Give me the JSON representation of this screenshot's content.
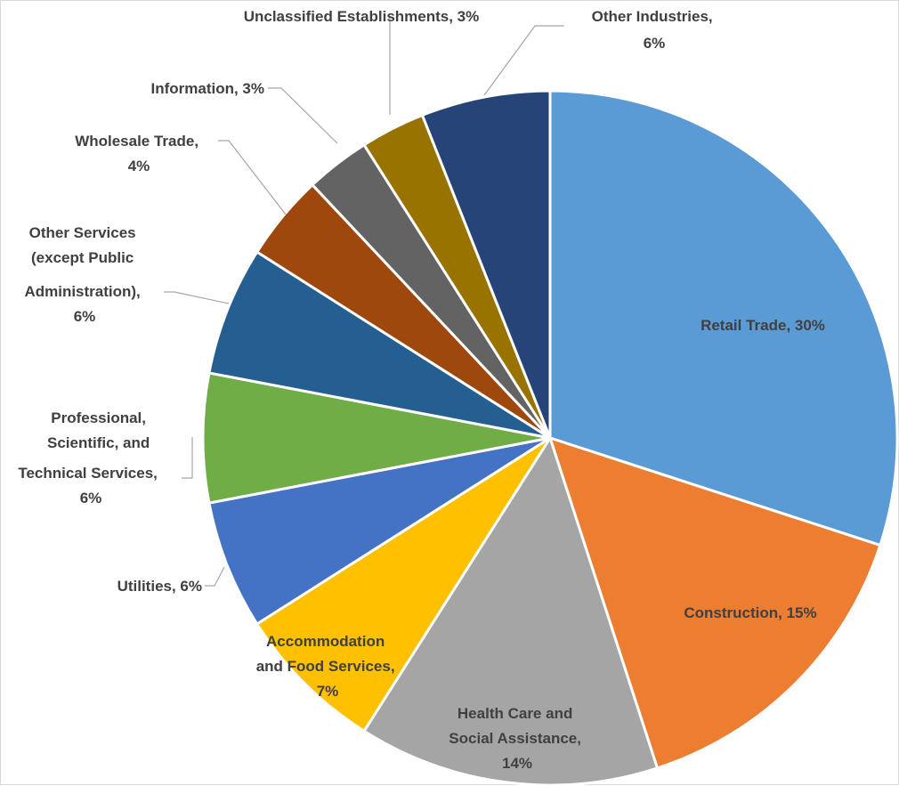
{
  "chart_data": {
    "type": "pie",
    "title": "",
    "slices": [
      {
        "label": "Retail Trade, 30%",
        "category": "Retail Trade",
        "value": 30,
        "color": "#5B9BD5"
      },
      {
        "label": "Construction, 15%",
        "category": "Construction",
        "value": 15,
        "color": "#ED7D31"
      },
      {
        "label": "Health Care and Social Assistance, 14%",
        "category": "Health Care and Social Assistance",
        "value": 14,
        "color": "#A5A5A5"
      },
      {
        "label": "Accommodation and Food Services, 7%",
        "category": "Accommodation and Food Services",
        "value": 7,
        "color": "#FFC000"
      },
      {
        "label": "Utilities, 6%",
        "category": "Utilities",
        "value": 6,
        "color": "#4472C4"
      },
      {
        "label": "Professional, Scientific, and Technical Services, 6%",
        "category": "Professional, Scientific, and Technical Services",
        "value": 6,
        "color": "#70AD47"
      },
      {
        "label": "Other Services (except Public Administration), 6%",
        "category": "Other Services (except Public Administration)",
        "value": 6,
        "color": "#255E91"
      },
      {
        "label": "Wholesale Trade, 4%",
        "category": "Wholesale Trade",
        "value": 4,
        "color": "#9E480E"
      },
      {
        "label": "Information, 3%",
        "category": "Information",
        "value": 3,
        "color": "#636363"
      },
      {
        "label": "Unclassified Establishments, 3%",
        "category": "Unclassified Establishments",
        "value": 3,
        "color": "#997300"
      },
      {
        "label": "Other Industries, 6%",
        "category": "Other Industries",
        "value": 6,
        "color": "#264478"
      }
    ]
  },
  "labels": {
    "retail": [
      "Retail Trade, 30%"
    ],
    "construction": [
      "Construction, 15%"
    ],
    "health": [
      "Health Care and",
      "Social Assistance,",
      "14%"
    ],
    "accommodation": [
      "Accommodation",
      "and Food Services,",
      "7%"
    ],
    "utilities": [
      "Utilities, 6%"
    ],
    "professional": [
      "Professional,",
      "Scientific, and",
      "Technical Services,",
      "6%"
    ],
    "other_services": [
      "Other Services",
      "(except Public",
      "Administration),",
      "6%"
    ],
    "wholesale": [
      "Wholesale Trade,",
      "4%"
    ],
    "information": [
      "Information, 3%"
    ],
    "unclassified": [
      "Unclassified Establishments, 3%"
    ],
    "other_industries": [
      "Other Industries,",
      "6%"
    ]
  }
}
